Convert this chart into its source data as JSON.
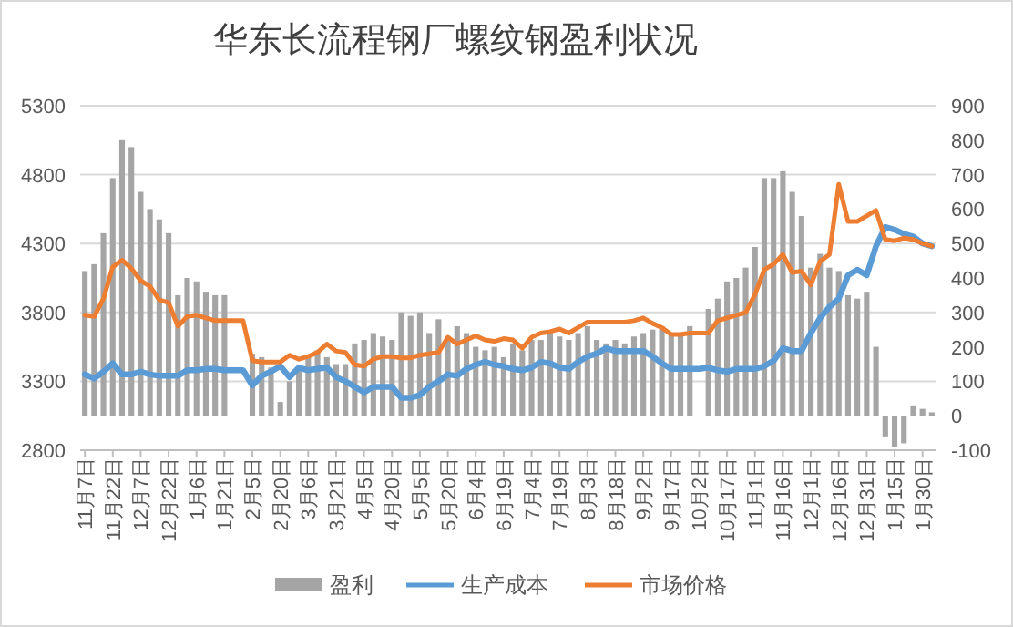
{
  "chart_data": {
    "type": "bar",
    "title": "华东长流程钢厂螺纹钢盈利状况",
    "categories": [
      "11月7日",
      null,
      null,
      "11月22日",
      null,
      null,
      "12月7日",
      null,
      null,
      "12月22日",
      null,
      null,
      "1月6日",
      null,
      null,
      "1月21日",
      null,
      null,
      "2月5日",
      null,
      null,
      "2月20日",
      null,
      null,
      "3月6日",
      null,
      null,
      "3月21日",
      null,
      null,
      "4月5日",
      null,
      null,
      "4月20日",
      null,
      null,
      "5月5日",
      null,
      null,
      "5月20日",
      null,
      null,
      "6月4日",
      null,
      null,
      "6月19日",
      null,
      null,
      "7月4日",
      null,
      null,
      "7月19日",
      null,
      null,
      "8月3日",
      null,
      null,
      "8月18日",
      null,
      null,
      "9月2日",
      null,
      null,
      "9月17日",
      null,
      null,
      "10月2日",
      null,
      null,
      "10月17日",
      null,
      null,
      "11月1日",
      null,
      null,
      "11月16日",
      null,
      null,
      "12月1日",
      null,
      null,
      "12月16日",
      null,
      null,
      "12月31日",
      null,
      null,
      "1月15日",
      null,
      null,
      "1月30日",
      null
    ],
    "series": [
      {
        "name": "盈利",
        "axis": "y2",
        "color": "#a5a5a5",
        "values": [
          420,
          440,
          530,
          690,
          800,
          780,
          650,
          600,
          570,
          530,
          350,
          400,
          390,
          360,
          350,
          350,
          null,
          null,
          180,
          170,
          140,
          40,
          100,
          140,
          170,
          190,
          170,
          150,
          150,
          210,
          220,
          240,
          230,
          220,
          300,
          290,
          300,
          240,
          280,
          220,
          260,
          240,
          200,
          190,
          200,
          170,
          210,
          190,
          220,
          220,
          240,
          230,
          220,
          240,
          260,
          220,
          210,
          220,
          210,
          230,
          240,
          250,
          260,
          240,
          240,
          260,
          null,
          310,
          340,
          390,
          400,
          430,
          490,
          690,
          690,
          710,
          650,
          580,
          430,
          470,
          430,
          420,
          350,
          340,
          360,
          200,
          -60,
          -90,
          -80,
          30,
          20,
          10
        ]
      },
      {
        "name": "生产成本",
        "type": "line",
        "color": "#5b9bd5",
        "values": [
          3350,
          3320,
          3370,
          3430,
          3350,
          3350,
          3370,
          3350,
          3340,
          3340,
          3340,
          3380,
          3380,
          3390,
          3390,
          3380,
          3380,
          3380,
          3270,
          3340,
          3370,
          3410,
          3330,
          3400,
          3380,
          3390,
          3400,
          3330,
          3300,
          3260,
          3220,
          3260,
          3260,
          3260,
          3180,
          3180,
          3200,
          3260,
          3300,
          3350,
          3340,
          3390,
          3420,
          3440,
          3420,
          3410,
          3390,
          3380,
          3400,
          3440,
          3430,
          3400,
          3390,
          3440,
          3480,
          3500,
          3540,
          3520,
          3520,
          3520,
          3520,
          3480,
          3430,
          3390,
          3390,
          3390,
          3390,
          3400,
          3380,
          3370,
          3390,
          3390,
          3390,
          3410,
          3450,
          3540,
          3520,
          3520,
          3650,
          3760,
          3840,
          3900,
          4070,
          4110,
          4070,
          4280,
          4420,
          4400,
          4370,
          4350,
          4300,
          4280
        ]
      },
      {
        "name": "市场价格",
        "type": "line",
        "color": "#ed7d31",
        "values": [
          3780,
          3770,
          3900,
          4130,
          4180,
          4120,
          4030,
          3990,
          3890,
          3870,
          3700,
          3770,
          3780,
          3760,
          3740,
          3740,
          3740,
          3740,
          3450,
          3440,
          3440,
          3440,
          3490,
          3460,
          3480,
          3510,
          3570,
          3520,
          3510,
          3420,
          3410,
          3460,
          3480,
          3480,
          3470,
          3470,
          3490,
          3500,
          3510,
          3620,
          3570,
          3600,
          3630,
          3600,
          3590,
          3610,
          3600,
          3540,
          3620,
          3650,
          3660,
          3680,
          3650,
          3690,
          3730,
          3730,
          3730,
          3730,
          3730,
          3740,
          3760,
          3720,
          3690,
          3640,
          3640,
          3650,
          3650,
          3650,
          3740,
          3760,
          3780,
          3800,
          3930,
          4110,
          4150,
          4220,
          4090,
          4100,
          4000,
          4170,
          4220,
          4730,
          4460,
          4460,
          4500,
          4540,
          4330,
          4320,
          4340,
          4330,
          4300,
          4280
        ]
      }
    ],
    "ylim": [
      2800,
      5300
    ],
    "yticks": [
      2800,
      3300,
      3800,
      4300,
      4800,
      5300
    ],
    "y2lim": [
      -100,
      900
    ],
    "y2ticks": [
      -100,
      0,
      100,
      200,
      300,
      400,
      500,
      600,
      700,
      800,
      900
    ],
    "grid": "y",
    "legend": "bottom"
  }
}
